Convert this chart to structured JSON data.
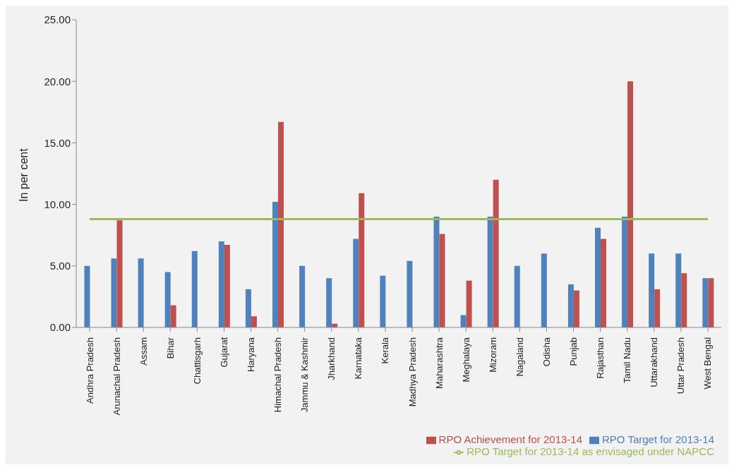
{
  "chart_data": {
    "type": "bar",
    "ylabel": "In per cent",
    "categories": [
      "Andhra Pradesh",
      "Arunachal Pradesh",
      "Assam",
      "Bihar",
      "Chattisgarh",
      "Gujarat",
      "Haryana",
      "Himachal Pradesh",
      "Jammu & Kashmir",
      "Jharkhand",
      "Karnataka",
      "Kerala",
      "Madhya Pradesh",
      "Maharashtra",
      "Meghalaya",
      "Mizoram",
      "Nagaland",
      "Odisha",
      "Punjab",
      "Rajasthan",
      "Tamil Nadu",
      "Uttarakhand",
      "Uttar Pradesh",
      "West Bengal"
    ],
    "series": [
      {
        "name": "RPO Target for 2013-14 as envisaged under NAPCC",
        "type": "line",
        "color": "#9bbb59",
        "values": [
          8.8,
          8.8,
          8.8,
          8.8,
          8.8,
          8.8,
          8.8,
          8.8,
          8.8,
          8.8,
          8.8,
          8.8,
          8.8,
          8.8,
          8.8,
          8.8,
          8.8,
          8.8,
          8.8,
          8.8,
          8.8,
          8.8,
          8.8,
          8.8
        ]
      },
      {
        "name": "RPO Target for 2013-14",
        "color": "#4f81bd",
        "values": [
          5.0,
          5.6,
          5.6,
          4.5,
          6.2,
          7.0,
          3.1,
          10.2,
          5.0,
          4.0,
          7.2,
          4.2,
          5.4,
          9.0,
          1.0,
          9.0,
          5.0,
          6.0,
          3.5,
          8.1,
          9.0,
          6.0,
          6.0,
          4.0
        ]
      },
      {
        "name": "RPO Achievement for 2013-14",
        "color": "#c0504d",
        "values": [
          null,
          8.7,
          null,
          1.8,
          null,
          6.7,
          0.9,
          16.7,
          null,
          0.3,
          10.9,
          null,
          null,
          7.6,
          3.8,
          12.0,
          null,
          null,
          3.0,
          7.2,
          20.0,
          3.1,
          4.4,
          4.0
        ]
      }
    ],
    "ylim": [
      0,
      25
    ],
    "yticks": [
      {
        "value": 0,
        "label": "0.00"
      },
      {
        "value": 5,
        "label": "5.00"
      },
      {
        "value": 10,
        "label": "10.00"
      },
      {
        "value": 15,
        "label": "15.00"
      },
      {
        "value": 20,
        "label": "20.00"
      },
      {
        "value": 25,
        "label": "25.00"
      }
    ],
    "grid": false,
    "legend": "bottom right",
    "marker": "none"
  }
}
